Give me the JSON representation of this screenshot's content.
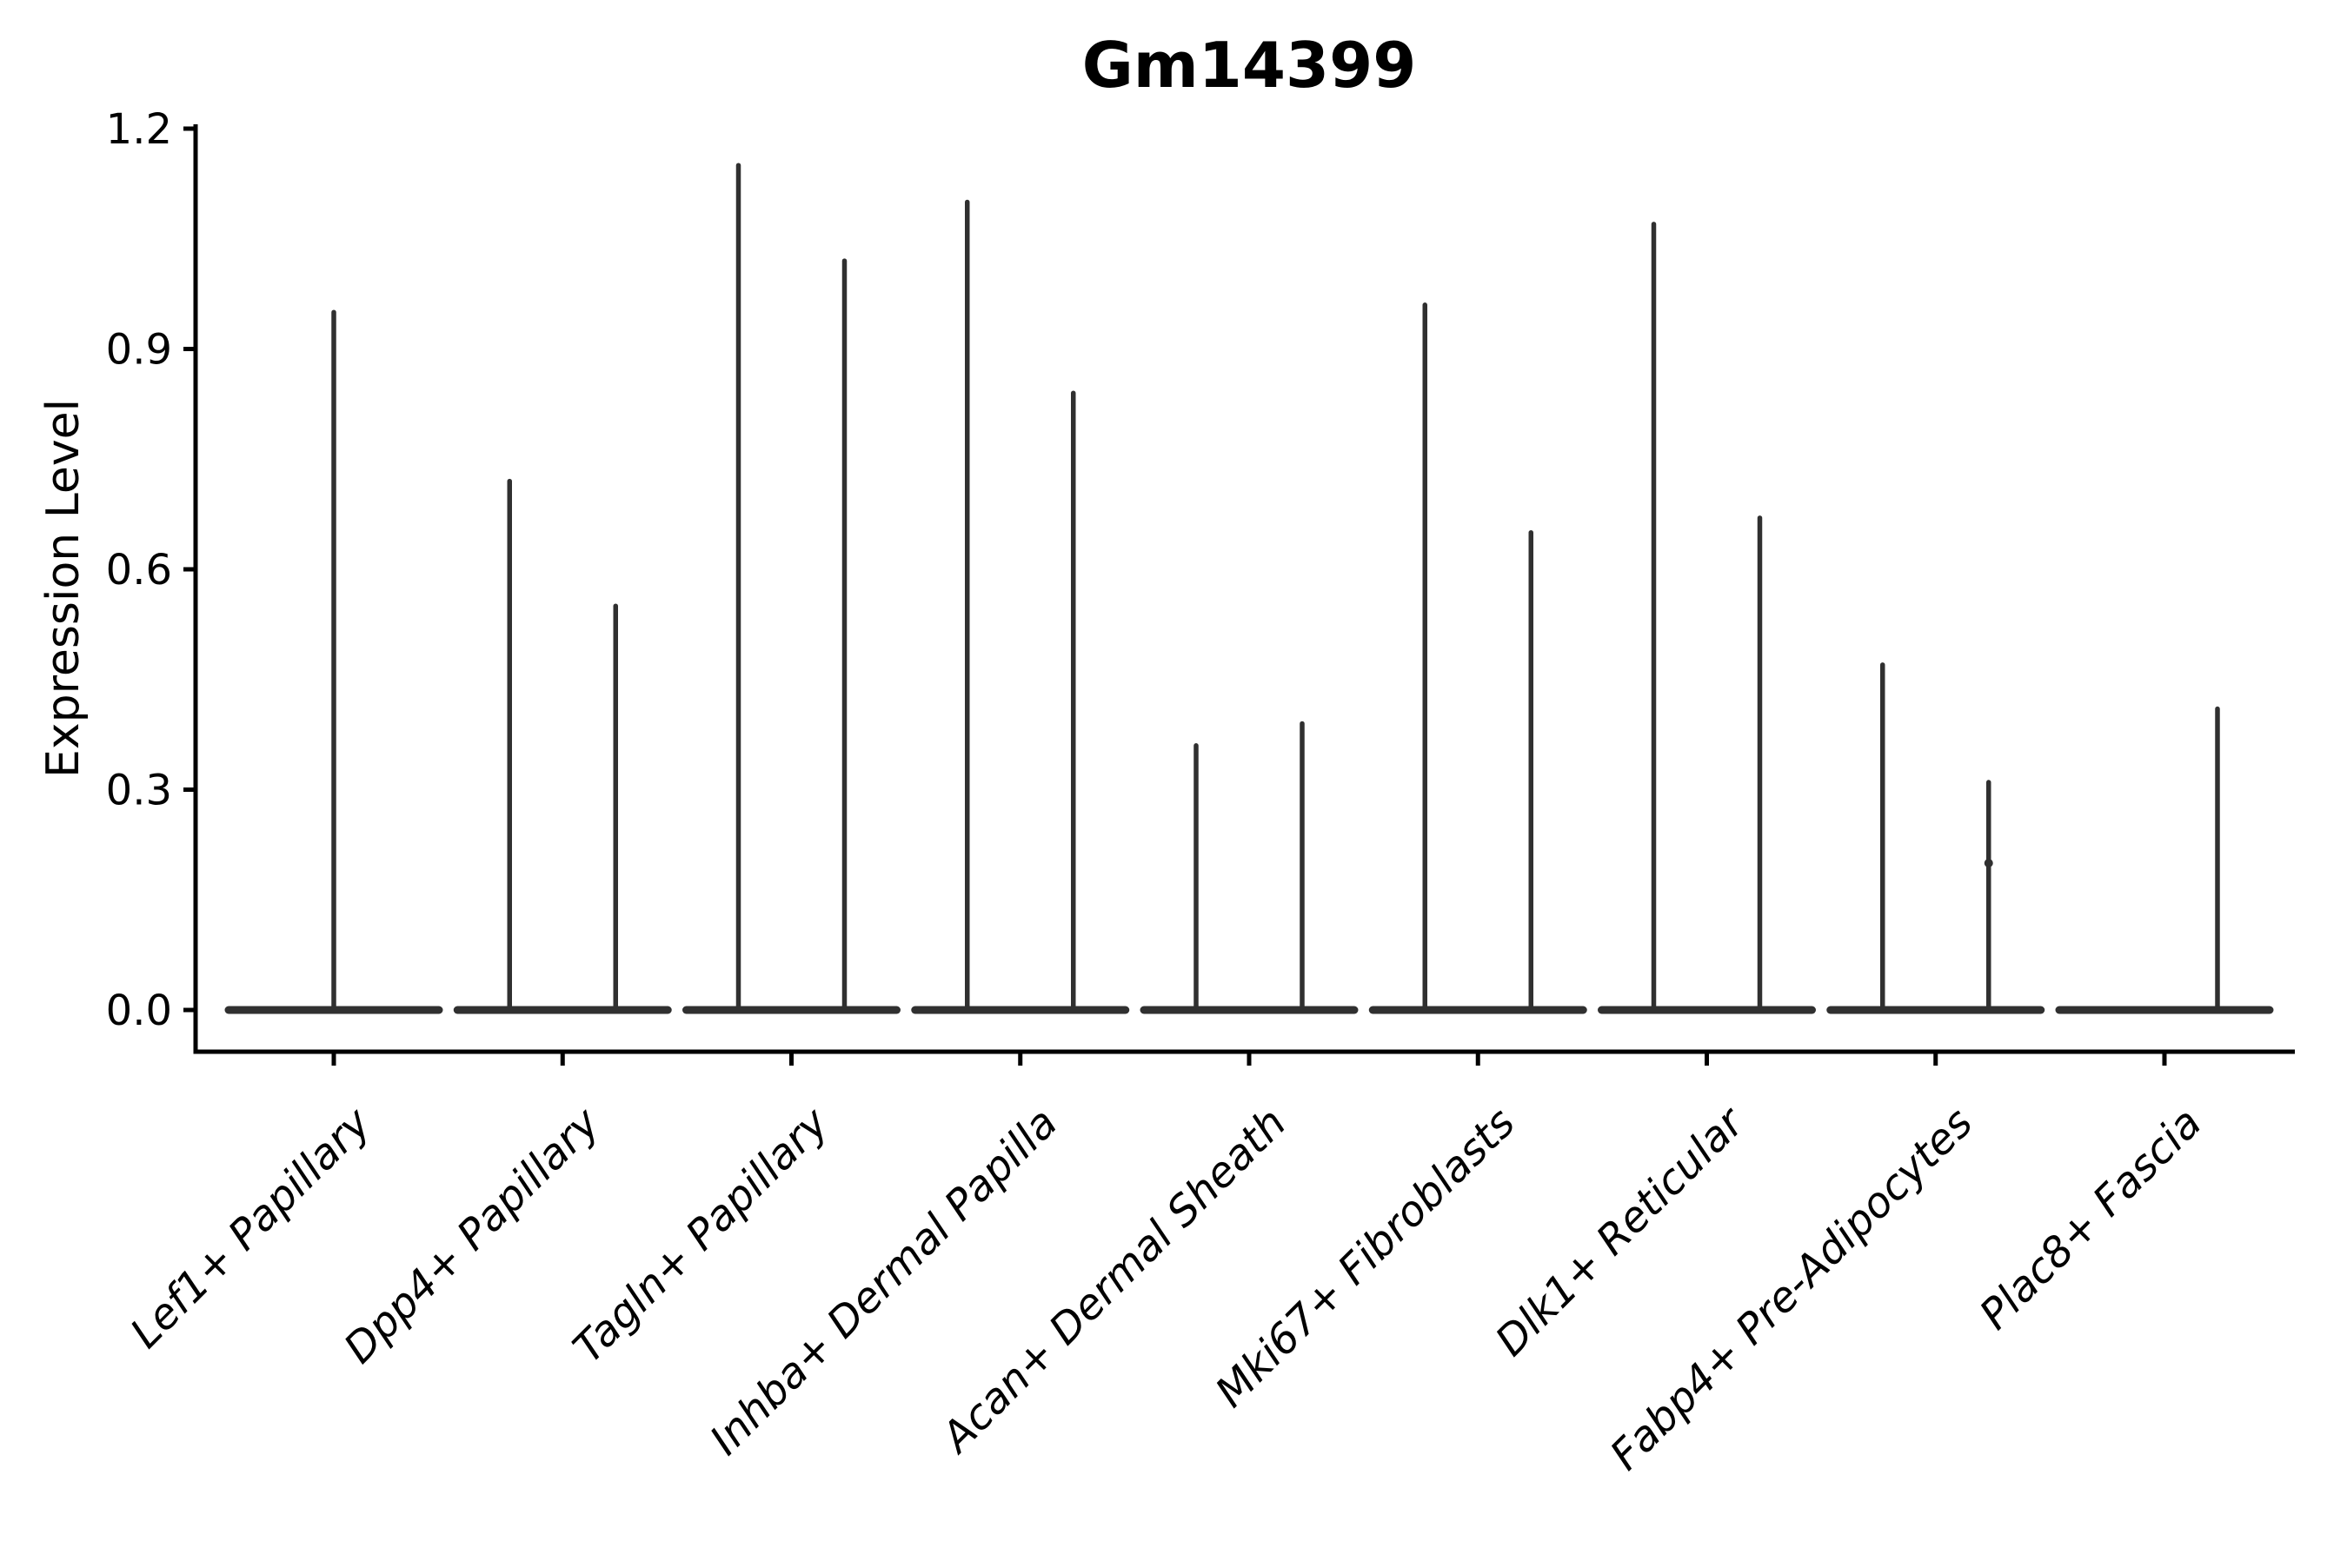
{
  "figure": {
    "background": "#ffffff"
  },
  "colors": {
    "axis": "#000000",
    "violin": "#303030",
    "text": "#000000",
    "background": "#ffffff"
  },
  "chart_data": {
    "type": "violin",
    "title": "Gm14399",
    "xlabel": "",
    "ylabel": "Expression Level",
    "ylim": [
      0,
      1.2
    ],
    "yticks": [
      0.0,
      0.3,
      0.6,
      0.9,
      1.2
    ],
    "grid": false,
    "legend": false,
    "x_label_rotation_deg": 45,
    "description": "Violin plot of Gm14399 expression per cell type. Each violin is flattened at 0 (most cells have zero expression) with a thin density spike rising to that group's maximum expression value. Categories may contain one centered violin or two side-by-side group violins.",
    "categories": [
      {
        "label": "Lef1+ Papillary",
        "violins": [
          {
            "group": "single",
            "max": 0.95
          }
        ]
      },
      {
        "label": "Dpp4+ Papillary",
        "violins": [
          {
            "group": "left",
            "max": 0.72
          },
          {
            "group": "right",
            "max": 0.55
          }
        ]
      },
      {
        "label": "Tagln+ Papillary",
        "violins": [
          {
            "group": "left",
            "max": 1.15
          },
          {
            "group": "right",
            "max": 1.02
          }
        ]
      },
      {
        "label": "Inhba+ Dermal Papilla",
        "violins": [
          {
            "group": "left",
            "max": 1.1
          },
          {
            "group": "right",
            "max": 0.84
          }
        ]
      },
      {
        "label": "Acan+ Dermal Sheath",
        "violins": [
          {
            "group": "left",
            "max": 0.36
          },
          {
            "group": "right",
            "max": 0.39
          }
        ]
      },
      {
        "label": "Mki67+ Fibroblasts",
        "violins": [
          {
            "group": "left",
            "max": 0.96
          },
          {
            "group": "right",
            "max": 0.65
          }
        ]
      },
      {
        "label": "Dlk1+ Reticular",
        "violins": [
          {
            "group": "left",
            "max": 1.07
          },
          {
            "group": "right",
            "max": 0.67
          }
        ]
      },
      {
        "label": "Fabp4+ Pre-Adipocytes",
        "violins": [
          {
            "group": "left",
            "max": 0.47
          },
          {
            "group": "right",
            "max": 0.31,
            "extra_points": [
              0.2
            ]
          }
        ]
      },
      {
        "label": "Plac8+ Fascia",
        "violins": [
          {
            "group": "left",
            "max": 0.0
          },
          {
            "group": "right",
            "max": 0.41
          }
        ]
      }
    ]
  }
}
